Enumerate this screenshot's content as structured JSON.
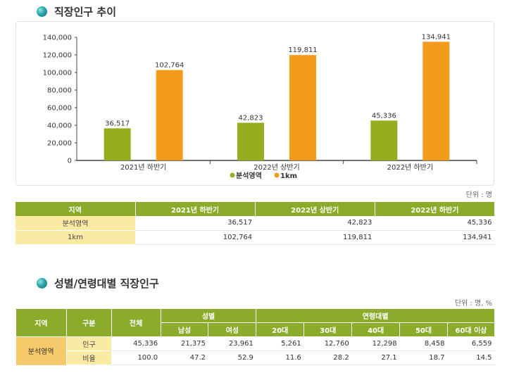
{
  "section1": {
    "title": "직장인구 추이"
  },
  "section2": {
    "title": "성별/연령대별 직장인구"
  },
  "unit1": "단위 : 명",
  "unit2": "단위 : 명, %",
  "chart_data": {
    "type": "bar",
    "title": "",
    "xlabel": "",
    "ylabel": "",
    "categories": [
      "2021년 하반기",
      "2022년 상반기",
      "2022년 하반기"
    ],
    "series": [
      {
        "name": "분석영역",
        "values": [
          36517,
          42823,
          45336
        ],
        "color": "#95ae1f"
      },
      {
        "name": "1km",
        "values": [
          102764,
          119811,
          134941
        ],
        "color": "#f39c1b"
      }
    ],
    "value_labels": [
      [
        "36,517",
        "42,823",
        "45,336"
      ],
      [
        "102,764",
        "119,811",
        "134,941"
      ]
    ],
    "ylim": [
      0,
      140000
    ],
    "yticks": [
      "0",
      "20,000",
      "40,000",
      "60,000",
      "80,000",
      "100,000",
      "120,000",
      "140,000"
    ],
    "grid": false,
    "legend_position": "bottom"
  },
  "table1": {
    "headers": [
      "지역",
      "2021년 하반기",
      "2022년 상반기",
      "2022년 하반기"
    ],
    "rows": [
      {
        "label": "분석영역",
        "values": [
          "36,517",
          "42,823",
          "45,336"
        ]
      },
      {
        "label": "1km",
        "values": [
          "102,764",
          "119,811",
          "134,941"
        ]
      }
    ]
  },
  "table2": {
    "h_region": "지역",
    "h_category": "구분",
    "h_total": "전체",
    "h_gender": "성별",
    "h_age": "연령대별",
    "gender_cols": [
      "남성",
      "여성"
    ],
    "age_cols": [
      "20대",
      "30대",
      "40대",
      "50대",
      "60대 이상"
    ],
    "region": "분석영역",
    "rows": [
      {
        "label": "인구",
        "values": [
          "45,336",
          "21,375",
          "23,961",
          "5,261",
          "12,760",
          "12,298",
          "8,458",
          "6,559"
        ]
      },
      {
        "label": "비율",
        "values": [
          "100.0",
          "47.2",
          "52.9",
          "11.6",
          "28.2",
          "27.1",
          "18.7",
          "14.5"
        ]
      }
    ]
  }
}
